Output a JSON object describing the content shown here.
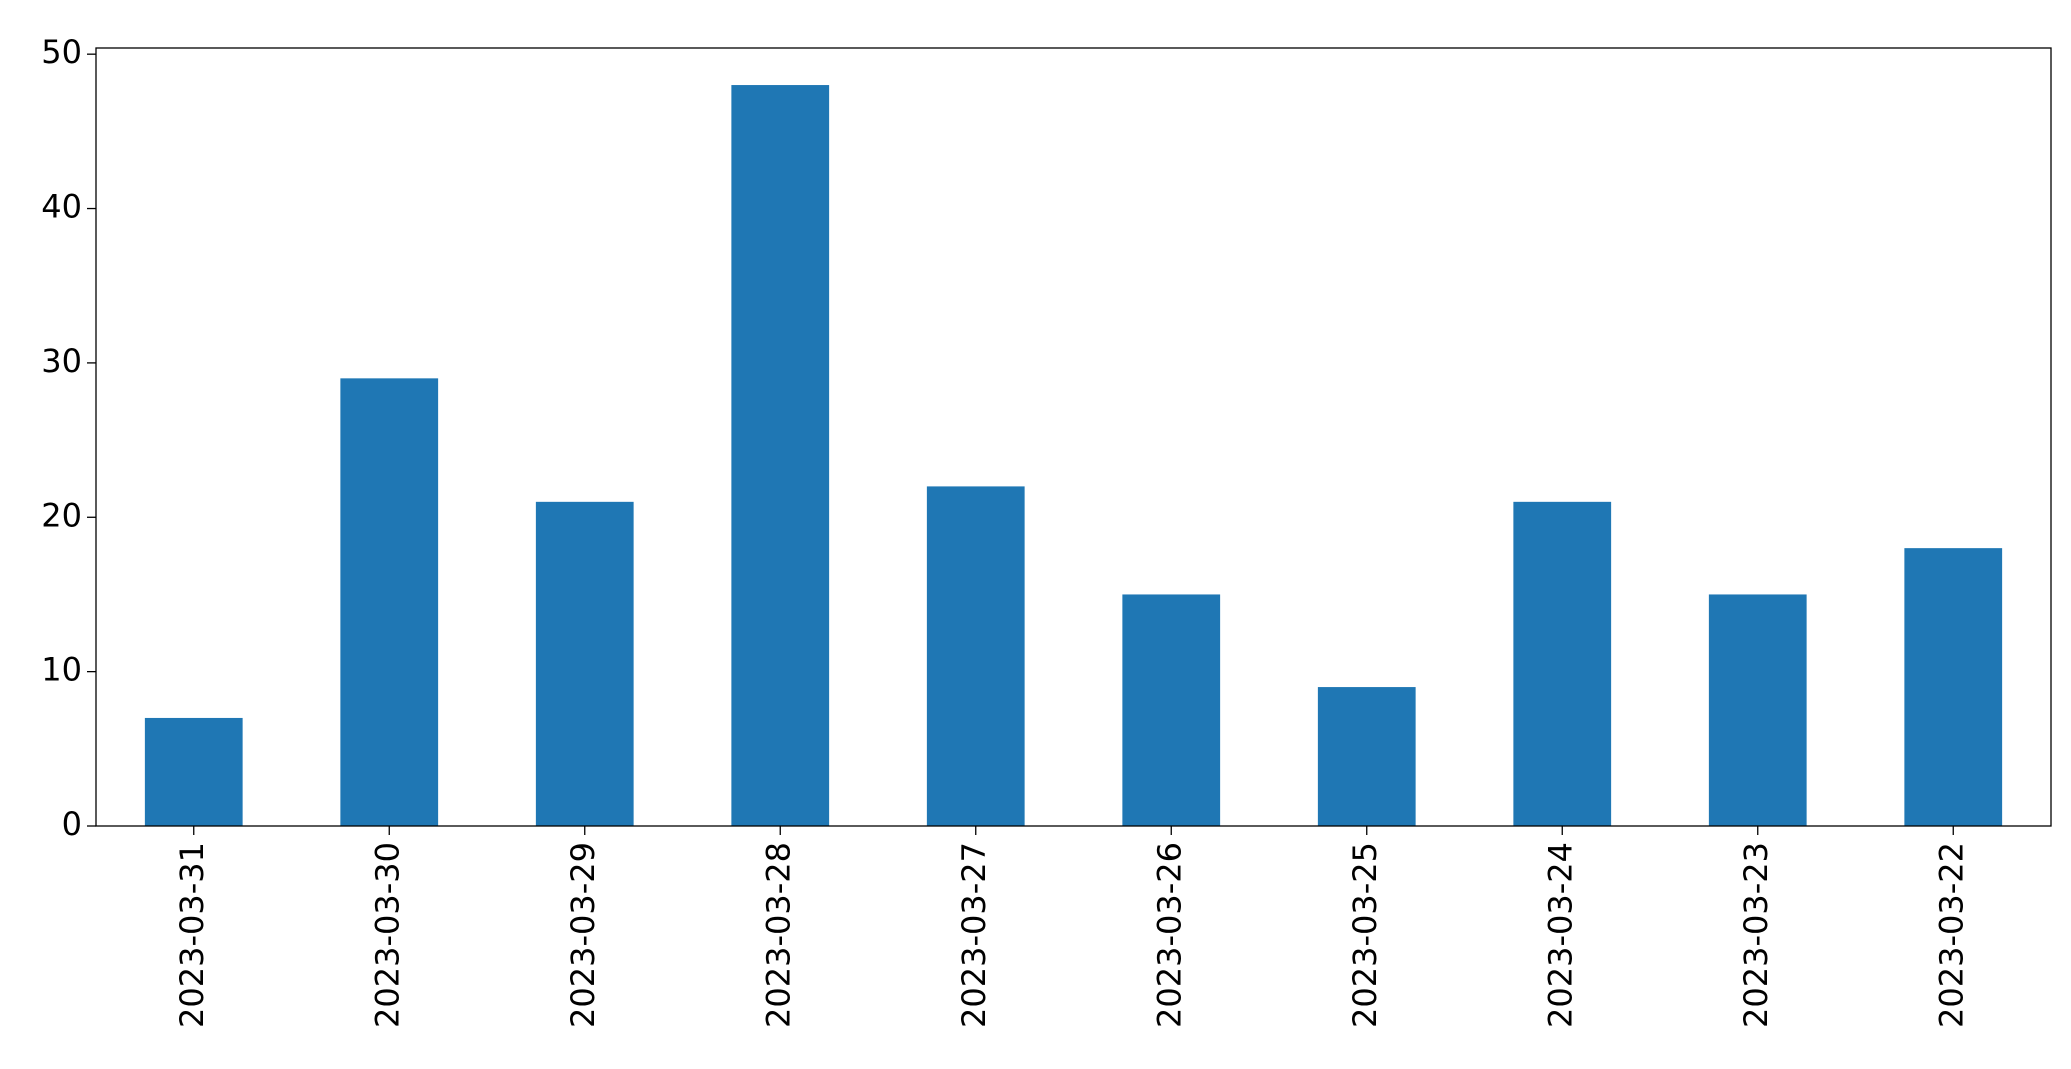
{
  "chart_data": {
    "type": "bar",
    "categories": [
      "2023-03-31",
      "2023-03-30",
      "2023-03-29",
      "2023-03-28",
      "2023-03-27",
      "2023-03-26",
      "2023-03-25",
      "2023-03-24",
      "2023-03-23",
      "2023-03-22"
    ],
    "values": [
      7,
      29,
      21,
      48,
      22,
      15,
      9,
      21,
      15,
      18
    ],
    "color": "#1f77b4",
    "ylim": [
      0,
      50.4
    ],
    "yticks": [
      0,
      10,
      20,
      30,
      40,
      50
    ],
    "grid": false
  }
}
